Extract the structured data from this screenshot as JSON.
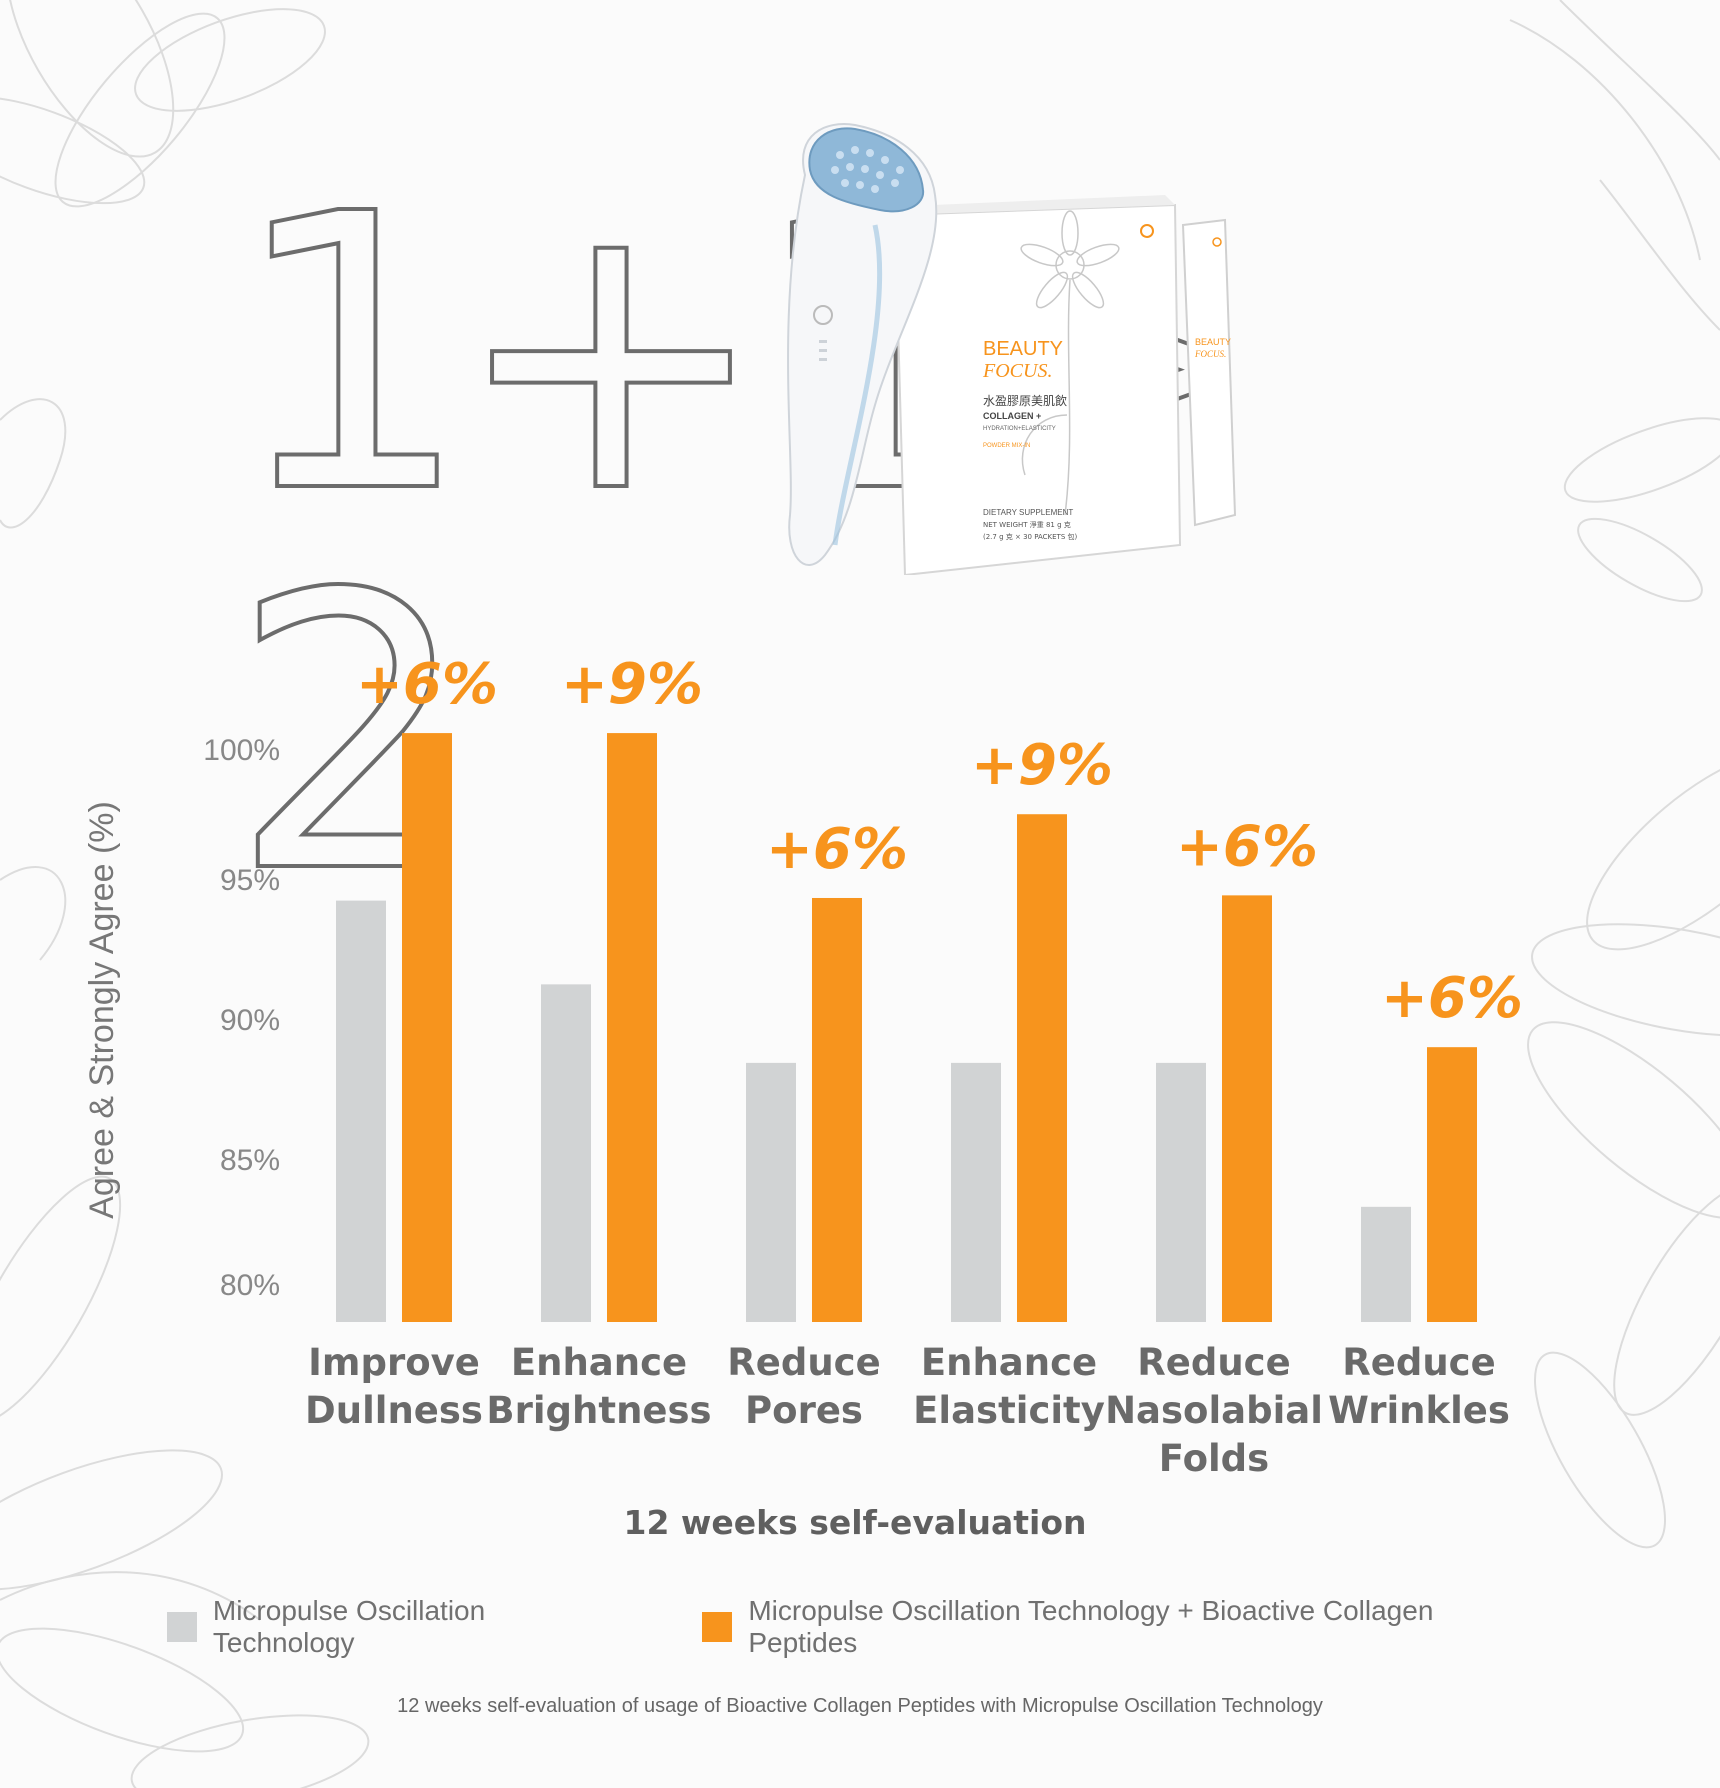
{
  "headline": {
    "one_a": "1",
    "plus": "+",
    "one_b": "1",
    "greater": ">",
    "two": "2"
  },
  "product": {
    "brand_line1": "BEAUTY",
    "brand_line2": "FOCUS.",
    "chinese_name": "水盈膠原美肌飲",
    "product_name": "COLLAGEN +",
    "sub_name": "HYDRATION+ELASTICITY",
    "mix_label": "POWDER MIX-IN",
    "supplement_label": "DIETARY SUPPLEMENT",
    "net_weight": "NET WEIGHT 淨重 81 g 克",
    "packets": "(2.7 g 克 × 30 PACKETS 包)"
  },
  "colors": {
    "grey_series": "#d1d3d4",
    "orange_series": "#f7941d"
  },
  "chart_data": {
    "type": "bar",
    "ylabel": "Agree & Strongly Agree (%)",
    "xlabel": "12 weeks self-evaluation",
    "yticks": [
      "80%",
      "85%",
      "90%",
      "95%",
      "100%"
    ],
    "ylim": [
      78.5,
      101.5
    ],
    "categories": [
      [
        "Improve",
        "Dullness"
      ],
      [
        "Enhance",
        "Brightness"
      ],
      [
        "Reduce",
        "Pores"
      ],
      [
        "Enhance",
        "Elasticity"
      ],
      [
        "Reduce",
        "Nasolabial",
        "Folds"
      ],
      [
        "Reduce",
        "Wrinkles"
      ]
    ],
    "series": [
      {
        "name": "Micropulse Oscillation Technology",
        "values": [
          94.6,
          91.4,
          88.4,
          88.4,
          88.4,
          82.9
        ]
      },
      {
        "name": "Micropulse Oscillation Technology + Bioactive Collagen Peptides",
        "values": [
          101.0,
          101.0,
          94.7,
          97.9,
          94.8,
          89.0
        ]
      }
    ],
    "annotations": [
      "+6%",
      "+9%",
      "+6%",
      "+9%",
      "+6%",
      "+6%"
    ],
    "legend_position": "bottom"
  },
  "footnote": "12  weeks self-evaluation of usage of Bioactive Collagen Peptides with Micropulse Oscillation Technology"
}
